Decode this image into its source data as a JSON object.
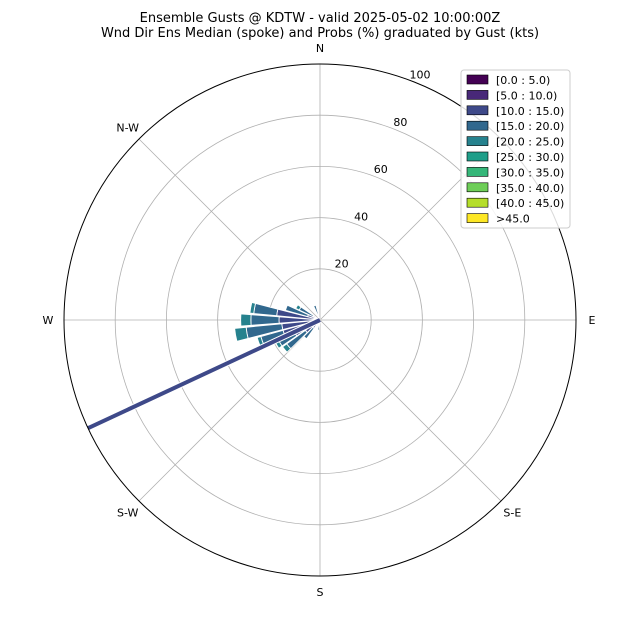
{
  "chart_data": {
    "type": "windrose",
    "title": "Ensemble Gusts @ KDTW - valid 2025-05-02 10:00:00Z",
    "subtitle": "Wnd Dir Ens Median (spoke) and Probs (%) graduated by Gust (kts)",
    "rmax": 100,
    "rticks": [
      20,
      40,
      60,
      80,
      100
    ],
    "direction_labels": [
      {
        "label": "N",
        "deg": 0
      },
      {
        "label": "E",
        "deg": 90
      },
      {
        "label": "S-E",
        "deg": 135
      },
      {
        "label": "S",
        "deg": 180
      },
      {
        "label": "S-W",
        "deg": 225
      },
      {
        "label": "W",
        "deg": 270
      },
      {
        "label": "N-W",
        "deg": 315
      }
    ],
    "legend": [
      {
        "label": "[0.0 : 5.0)",
        "color": "#440154"
      },
      {
        "label": "[5.0 : 10.0)",
        "color": "#482878"
      },
      {
        "label": "[10.0 : 15.0)",
        "color": "#3e4989"
      },
      {
        "label": "[15.0 : 20.0)",
        "color": "#31688e"
      },
      {
        "label": "[20.0 : 25.0)",
        "color": "#26828e"
      },
      {
        "label": "[25.0 : 30.0)",
        "color": "#1f9e89"
      },
      {
        "label": "[30.0 : 35.0)",
        "color": "#35b779"
      },
      {
        "label": "[35.0 : 40.0)",
        "color": "#6ece58"
      },
      {
        "label": "[40.0 : 45.0)",
        "color": "#b5de2b"
      },
      {
        "label": ">45.0",
        "color": "#fde725"
      }
    ],
    "legend_placement": "top-right",
    "spoke": {
      "direction_deg": 245,
      "value": 100,
      "color": "#3e4989"
    },
    "sector_width_deg": 10,
    "sectors": [
      {
        "dir": 340,
        "bins": [
          [
            2,
            "#3e4989"
          ],
          [
            4,
            "#31688e"
          ]
        ]
      },
      {
        "dir": 300,
        "bins": [
          [
            3,
            "#3e4989"
          ],
          [
            6,
            "#31688e"
          ],
          [
            1.5,
            "#26828e"
          ]
        ]
      },
      {
        "dir": 290,
        "bins": [
          [
            5,
            "#3e4989"
          ],
          [
            9,
            "#31688e"
          ]
        ]
      },
      {
        "dir": 280,
        "bins": [
          [
            17,
            "#3e4989"
          ],
          [
            9,
            "#31688e"
          ],
          [
            1.5,
            "#26828e"
          ]
        ]
      },
      {
        "dir": 270,
        "bins": [
          [
            16,
            "#3e4989"
          ],
          [
            11,
            "#31688e"
          ],
          [
            4,
            "#26828e"
          ]
        ]
      },
      {
        "dir": 260,
        "bins": [
          [
            15,
            "#3e4989"
          ],
          [
            14,
            "#31688e"
          ],
          [
            4.5,
            "#26828e"
          ]
        ]
      },
      {
        "dir": 250,
        "bins": [
          [
            15,
            "#3e4989"
          ],
          [
            9,
            "#31688e"
          ],
          [
            1.5,
            "#26828e"
          ]
        ]
      },
      {
        "dir": 240,
        "bins": [
          [
            11,
            "#3e4989"
          ],
          [
            7,
            "#31688e"
          ],
          [
            1.5,
            "#26828e"
          ]
        ]
      },
      {
        "dir": 230,
        "bins": [
          [
            7,
            "#3e4989"
          ],
          [
            9,
            "#31688e"
          ],
          [
            2,
            "#26828e"
          ]
        ]
      },
      {
        "dir": 220,
        "bins": [
          [
            4,
            "#3e4989"
          ],
          [
            5,
            "#31688e"
          ]
        ]
      },
      {
        "dir": 200,
        "bins": [
          [
            2,
            "#3e4989"
          ]
        ]
      },
      {
        "dir": 190,
        "bins": [
          [
            2,
            "#3e4989"
          ],
          [
            2,
            "#31688e"
          ]
        ]
      }
    ]
  }
}
